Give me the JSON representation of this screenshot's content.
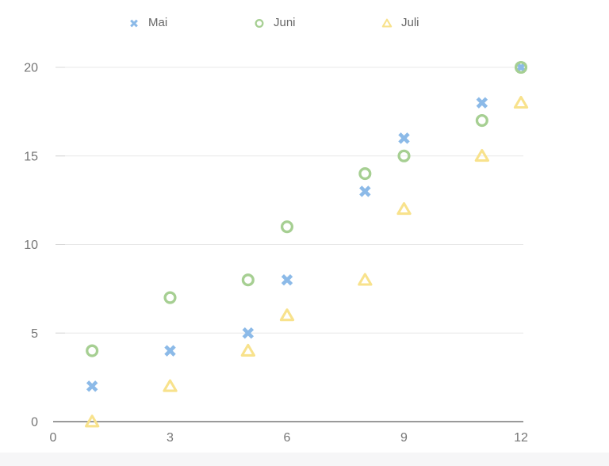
{
  "chart_data": {
    "type": "scatter",
    "title": "",
    "xlabel": "",
    "ylabel": "",
    "legend_position": "top",
    "grid": "horizontal-only",
    "x_axis": {
      "range": [
        0,
        12
      ],
      "ticks": [
        0,
        3,
        6,
        9,
        12
      ]
    },
    "y_axis": {
      "range": [
        0,
        20
      ],
      "ticks": [
        0,
        5,
        10,
        15,
        20
      ]
    },
    "series": [
      {
        "name": "Mai",
        "marker": "cross-rot",
        "color": "#8cbae8",
        "points": [
          [
            1,
            2
          ],
          [
            3,
            4
          ],
          [
            5,
            5
          ],
          [
            6,
            8
          ],
          [
            8,
            13
          ],
          [
            9,
            16
          ],
          [
            11,
            18
          ],
          [
            12,
            20
          ]
        ]
      },
      {
        "name": "Juni",
        "marker": "circle",
        "color": "#a6cf92",
        "points": [
          [
            1,
            4
          ],
          [
            3,
            7
          ],
          [
            5,
            8
          ],
          [
            6,
            11
          ],
          [
            8,
            14
          ],
          [
            9,
            15
          ],
          [
            11,
            17
          ],
          [
            12,
            20
          ]
        ]
      },
      {
        "name": "Juli",
        "marker": "triangle",
        "color": "#f8e28c",
        "points": [
          [
            1,
            0
          ],
          [
            3,
            2
          ],
          [
            5,
            4
          ],
          [
            6,
            6
          ],
          [
            8,
            8
          ],
          [
            9,
            12
          ],
          [
            11,
            15
          ],
          [
            12,
            18
          ]
        ]
      }
    ],
    "colors": {
      "axis_text": "#757575",
      "legend_text": "#666666",
      "gridline": "#e8e8e8",
      "grid_tick": "#d8d8d8",
      "axis_line": "#9a9a9a",
      "background": "#ffffff",
      "footer_strip": "#f6f6f7"
    }
  }
}
